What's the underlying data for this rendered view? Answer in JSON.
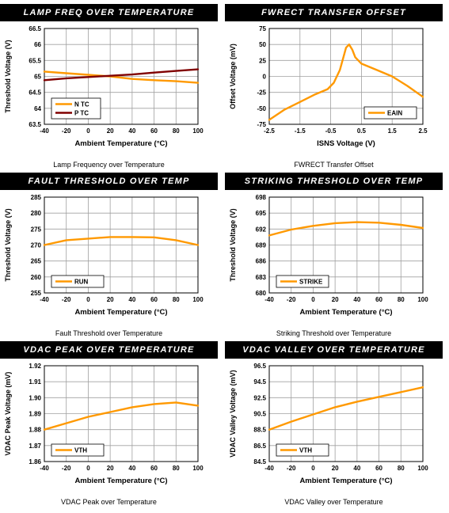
{
  "colors": {
    "orange": "#ff9900",
    "maroon": "#800000",
    "grid": "#a0a0a0",
    "header_bg": "#000000"
  },
  "charts": [
    {
      "id": "lamp",
      "header": "LAMP FREQ OVER TEMPERATURE",
      "caption": "Lamp Frequency over Temperature",
      "chart_data": {
        "type": "line",
        "x": [
          -40,
          -20,
          0,
          20,
          40,
          60,
          80,
          100
        ],
        "series": [
          {
            "name": "NTC",
            "color": "#ff9900",
            "values": [
              65.15,
              65.1,
              65.05,
              65.0,
              64.92,
              64.88,
              64.85,
              64.8
            ]
          },
          {
            "name": "PTC",
            "color": "#800000",
            "values": [
              64.88,
              64.94,
              64.98,
              65.02,
              65.06,
              65.12,
              65.17,
              65.22
            ]
          }
        ],
        "xlim": [
          -40,
          100
        ],
        "ylim": [
          63.5,
          66.5
        ],
        "xticks": [
          -40,
          -20,
          0,
          20,
          40,
          60,
          80,
          100
        ],
        "xticklabels": [
          "-40",
          "-20",
          "0",
          "20",
          "40",
          "60",
          "80",
          "100"
        ],
        "yticks": [
          63.5,
          64,
          64.5,
          65,
          65.5,
          66,
          66.5
        ],
        "yticklabels": [
          "63.5",
          "64",
          "64.5",
          "65",
          "65.5",
          "66",
          "66.5"
        ],
        "xlabel": "Ambient Temperature (°C)",
        "ylabel": "Threshold Voltage (V)",
        "legend": [
          "N TC",
          "P TC"
        ],
        "legend_position": "bottom-left",
        "grid": true
      }
    },
    {
      "id": "fwrect",
      "header": "FWRECT TRANSFER OFFSET",
      "caption": "FWRECT Transfer Offset",
      "chart_data": {
        "type": "line",
        "x": [
          -2.5,
          -2.0,
          -1.5,
          -1.0,
          -0.6,
          -0.4,
          -0.2,
          0.0,
          0.1,
          0.2,
          0.3,
          0.5,
          1.0,
          1.5,
          2.0,
          2.5
        ],
        "series": [
          {
            "name": "EAIN",
            "color": "#ff9900",
            "values": [
              -68,
              -52,
              -40,
              -28,
              -20,
              -10,
              10,
              45,
              50,
              42,
              30,
              20,
              10,
              0,
              -15,
              -32
            ]
          }
        ],
        "xlim": [
          -2.5,
          2.5
        ],
        "ylim": [
          -75,
          75
        ],
        "xticks": [
          -2.5,
          -1.5,
          -0.5,
          0.5,
          1.5,
          2.5
        ],
        "xticklabels": [
          "-2.5",
          "-1.5",
          "-0.5",
          "0.5",
          "1.5",
          "2.5"
        ],
        "yticks": [
          -75,
          -50,
          -25,
          0,
          25,
          50,
          75
        ],
        "yticklabels": [
          "-75",
          "-50",
          "-25",
          "0",
          "25",
          "50",
          "75"
        ],
        "xlabel": "ISNS Voltage (V)",
        "ylabel": "Offset Voltage (mV)",
        "legend": [
          "EAIN"
        ],
        "legend_position": "bottom-right",
        "grid": true
      }
    },
    {
      "id": "fault",
      "header": "FAULT THRESHOLD OVER TEMP",
      "caption": "Fault Threshold over Temperature",
      "chart_data": {
        "type": "line",
        "x": [
          -40,
          -20,
          0,
          20,
          40,
          60,
          80,
          100
        ],
        "series": [
          {
            "name": "RUN",
            "color": "#ff9900",
            "values": [
              270,
              271.5,
              272,
              272.5,
              272.5,
              272.4,
              271.5,
              270
            ]
          }
        ],
        "xlim": [
          -40,
          100
        ],
        "ylim": [
          255,
          285
        ],
        "xticks": [
          -40,
          -20,
          0,
          20,
          40,
          60,
          80,
          100
        ],
        "xticklabels": [
          "-40",
          "-20",
          "0",
          "20",
          "40",
          "60",
          "80",
          "100"
        ],
        "yticks": [
          255,
          260,
          265,
          270,
          275,
          280,
          285
        ],
        "yticklabels": [
          "255",
          "260",
          "265",
          "270",
          "275",
          "280",
          "285"
        ],
        "xlabel": "Ambient Temperature (°C)",
        "ylabel": "Threshold Voltage (V)",
        "legend": [
          "RUN"
        ],
        "legend_position": "bottom-left",
        "grid": true
      }
    },
    {
      "id": "striking",
      "header": "STRIKING THRESHOLD OVER TEMP",
      "caption": "Striking Threshold over Temperature",
      "chart_data": {
        "type": "line",
        "x": [
          -40,
          -20,
          0,
          20,
          40,
          60,
          80,
          100
        ],
        "series": [
          {
            "name": "STRIKE",
            "color": "#ff9900",
            "values": [
              690.8,
              691.9,
              692.6,
              693.1,
              693.3,
              693.2,
              692.8,
              692.2
            ]
          }
        ],
        "xlim": [
          -40,
          100
        ],
        "ylim": [
          680,
          698
        ],
        "xticks": [
          -40,
          -20,
          0,
          20,
          40,
          60,
          80,
          100
        ],
        "xticklabels": [
          "-40",
          "-20",
          "0",
          "20",
          "40",
          "60",
          "80",
          "100"
        ],
        "yticks": [
          680,
          683,
          686,
          689,
          692,
          695,
          698
        ],
        "yticklabels": [
          "680",
          "683",
          "686",
          "689",
          "692",
          "695",
          "698"
        ],
        "xlabel": "Ambient Temperature (°C)",
        "ylabel": "Threshold Voltage (V)",
        "legend": [
          "STRIKE"
        ],
        "legend_position": "bottom-left",
        "grid": true
      }
    },
    {
      "id": "vdacpeak",
      "header": "VDAC PEAK OVER TEMPERATURE",
      "caption": "VDAC Peak over Temperature",
      "chart_data": {
        "type": "line",
        "x": [
          -40,
          -20,
          0,
          20,
          40,
          60,
          80,
          100
        ],
        "series": [
          {
            "name": "VTH",
            "color": "#ff9900",
            "values": [
              1.88,
              1.884,
              1.888,
              1.891,
              1.894,
              1.896,
              1.897,
              1.895
            ]
          }
        ],
        "xlim": [
          -40,
          100
        ],
        "ylim": [
          1.86,
          1.92
        ],
        "xticks": [
          -40,
          -20,
          0,
          20,
          40,
          60,
          80,
          100
        ],
        "xticklabels": [
          "-40",
          "-20",
          "0",
          "20",
          "40",
          "60",
          "80",
          "100"
        ],
        "yticks": [
          1.86,
          1.87,
          1.88,
          1.89,
          1.9,
          1.91,
          1.92
        ],
        "yticklabels": [
          "1.86",
          "1.87",
          "1.88",
          "1.89",
          "1.90",
          "1.91",
          "1.92"
        ],
        "xlabel": "Ambient Temperature (°C)",
        "ylabel": "VDAC Peak Voltage (mV)",
        "legend": [
          "VTH"
        ],
        "legend_position": "bottom-left",
        "grid": true
      }
    },
    {
      "id": "vdacvalley",
      "header": "VDAC VALLEY OVER TEMPERATURE",
      "caption": "VDAC Valley over Temperature",
      "chart_data": {
        "type": "line",
        "x": [
          -40,
          -20,
          0,
          20,
          40,
          60,
          80,
          100
        ],
        "series": [
          {
            "name": "VTH",
            "color": "#ff9900",
            "values": [
              88.5,
              89.5,
              90.4,
              91.3,
              92.0,
              92.6,
              93.2,
              93.8
            ]
          }
        ],
        "xlim": [
          -40,
          100
        ],
        "ylim": [
          84.5,
          96.5
        ],
        "xticks": [
          -40,
          -20,
          0,
          20,
          40,
          60,
          80,
          100
        ],
        "xticklabels": [
          "-40",
          "-20",
          "0",
          "20",
          "40",
          "60",
          "80",
          "100"
        ],
        "yticks": [
          84.5,
          86.5,
          88.5,
          90.5,
          92.5,
          94.5,
          96.5
        ],
        "yticklabels": [
          "84.5",
          "86.5",
          "88.5",
          "90.5",
          "92.5",
          "94.5",
          "96.5"
        ],
        "xlabel": "Ambient Temperature (°C)",
        "ylabel": "VDAC Valley Voltage (mV)",
        "legend": [
          "VTH"
        ],
        "legend_position": "bottom-left",
        "grid": true
      }
    }
  ]
}
